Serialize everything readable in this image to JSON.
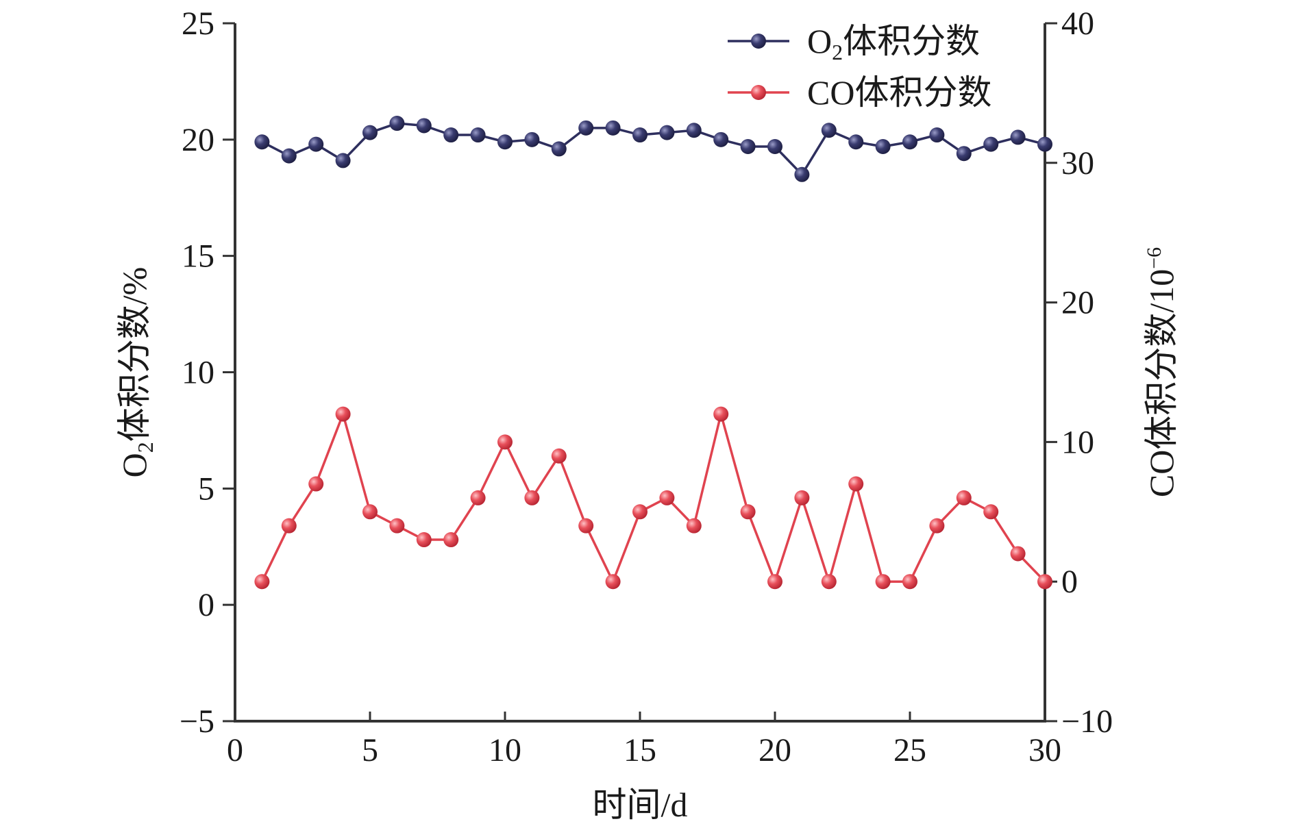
{
  "chart_data": {
    "type": "line",
    "x_axis": {
      "label": "时间/d",
      "range": [
        0,
        30
      ],
      "ticks": [
        0,
        5,
        10,
        15,
        20,
        25,
        30
      ]
    },
    "y_axis_left": {
      "label": {
        "main": "O",
        "sub": "2",
        "rest": "体积分数/%"
      },
      "range": [
        -5,
        25
      ],
      "ticks": [
        -5,
        0,
        5,
        10,
        15,
        20,
        25
      ],
      "tick_labels": [
        "−5",
        "0",
        "5",
        "10",
        "15",
        "20",
        "25"
      ]
    },
    "y_axis_right": {
      "label": {
        "main": "CO体积分数/10",
        "sup": "−6"
      },
      "range": [
        -10,
        40
      ],
      "ticks": [
        -10,
        0,
        10,
        20,
        30,
        40
      ],
      "tick_labels": [
        "−10",
        "0",
        "10",
        "20",
        "30",
        "40"
      ]
    },
    "legend": {
      "position": "top-right",
      "items": [
        {
          "series": 0,
          "main": "O",
          "sub": "2",
          "rest": "体积分数"
        },
        {
          "series": 1,
          "main": "CO体积分数",
          "sub": "",
          "rest": ""
        }
      ]
    },
    "x": [
      1,
      2,
      3,
      4,
      5,
      6,
      7,
      8,
      9,
      10,
      11,
      12,
      13,
      14,
      15,
      16,
      17,
      18,
      19,
      20,
      21,
      22,
      23,
      24,
      25,
      26,
      27,
      28,
      29,
      30
    ],
    "series": [
      {
        "name": "O2体积分数",
        "axis": "left",
        "color": "#2e2f5e",
        "values": [
          19.9,
          19.3,
          19.8,
          19.1,
          20.3,
          20.7,
          20.6,
          20.2,
          20.2,
          19.9,
          20.0,
          19.6,
          20.5,
          20.5,
          20.2,
          20.3,
          20.4,
          20.0,
          19.7,
          19.7,
          18.5,
          20.4,
          19.9,
          19.7,
          19.9,
          20.2,
          19.4,
          19.8,
          20.1,
          19.8
        ]
      },
      {
        "name": "CO体积分数",
        "axis": "right",
        "color": "#e0434f",
        "values": [
          0,
          4,
          7,
          12,
          5,
          4,
          3,
          3,
          6,
          10,
          6,
          9,
          4,
          0,
          5,
          6,
          4,
          12,
          5,
          0,
          6,
          0,
          7,
          0,
          0,
          4,
          6,
          5,
          2,
          0
        ]
      }
    ],
    "grid": false
  }
}
